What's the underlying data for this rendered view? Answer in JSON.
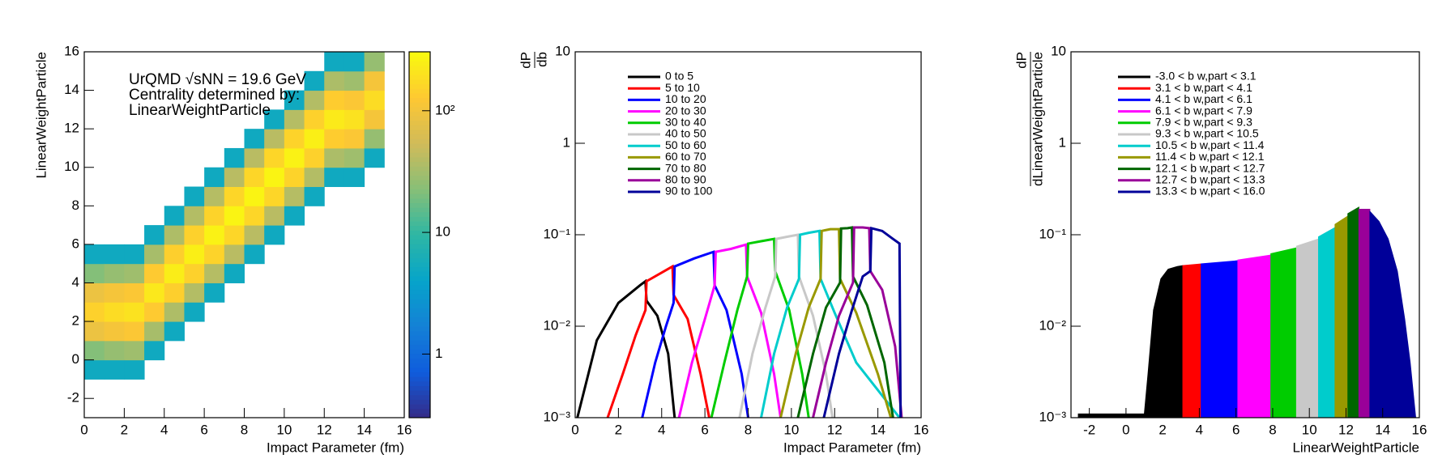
{
  "chart_data": [
    {
      "type": "heatmap",
      "xlabel": "Impact Parameter (fm)",
      "ylabel": "LinearWeightParticle",
      "annotations": [
        "UrQMD √sNN = 19.6 GeV",
        "Centrality determined by:",
        "LinearWeightParticle"
      ],
      "xlim": [
        0,
        16
      ],
      "ylim": [
        -3,
        16
      ],
      "xticks": [
        0,
        2,
        4,
        6,
        8,
        10,
        12,
        14,
        16
      ],
      "yticks": [
        -2,
        0,
        2,
        4,
        6,
        8,
        10,
        12,
        14,
        16
      ],
      "x_bins": [
        0,
        1,
        2,
        3,
        4,
        5,
        6,
        7,
        8,
        9,
        10,
        11,
        12,
        13,
        14,
        15
      ],
      "y_bins": [
        -1,
        0,
        1,
        2,
        3,
        4,
        5,
        6,
        7,
        8,
        9,
        10,
        11,
        12,
        13,
        14,
        15,
        16
      ],
      "values": [
        [
          5,
          22,
          90,
          150,
          90,
          22,
          5,
          0,
          0,
          0,
          0,
          0,
          0,
          0,
          0,
          0,
          0
        ],
        [
          5,
          27,
          108,
          180,
          108,
          27,
          5,
          0,
          0,
          0,
          0,
          0,
          0,
          0,
          0,
          0,
          0
        ],
        [
          5,
          30,
          120,
          200,
          120,
          30,
          5,
          0,
          0,
          0,
          0,
          0,
          0,
          0,
          0,
          0,
          0
        ],
        [
          0,
          5,
          33,
          132,
          220,
          132,
          33,
          5,
          0,
          0,
          0,
          0,
          0,
          0,
          0,
          0,
          0
        ],
        [
          0,
          0,
          5,
          36,
          144,
          240,
          144,
          36,
          5,
          0,
          0,
          0,
          0,
          0,
          0,
          0,
          0
        ],
        [
          0,
          0,
          0,
          5,
          38,
          150,
          250,
          150,
          38,
          5,
          0,
          0,
          0,
          0,
          0,
          0,
          0
        ],
        [
          0,
          0,
          0,
          0,
          5,
          39,
          156,
          260,
          156,
          39,
          5,
          0,
          0,
          0,
          0,
          0,
          0
        ],
        [
          0,
          0,
          0,
          0,
          0,
          5,
          41,
          162,
          270,
          162,
          41,
          5,
          0,
          0,
          0,
          0,
          0
        ],
        [
          0,
          0,
          0,
          0,
          0,
          0,
          5,
          41,
          162,
          270,
          162,
          41,
          5,
          0,
          0,
          0,
          0
        ],
        [
          0,
          0,
          0,
          0,
          0,
          0,
          0,
          5,
          41,
          162,
          270,
          162,
          41,
          5,
          0,
          0,
          0
        ],
        [
          0,
          0,
          0,
          0,
          0,
          0,
          0,
          0,
          5,
          39,
          156,
          260,
          156,
          39,
          5,
          0,
          0
        ],
        [
          0,
          0,
          0,
          0,
          0,
          0,
          0,
          0,
          0,
          5,
          38,
          150,
          250,
          150,
          38,
          5,
          0
        ],
        [
          0,
          0,
          0,
          0,
          0,
          0,
          0,
          0,
          0,
          0,
          5,
          35,
          138,
          230,
          138,
          35,
          5
        ],
        [
          0,
          0,
          0,
          0,
          0,
          0,
          0,
          0,
          0,
          0,
          5,
          30,
          120,
          200,
          120,
          30,
          5
        ],
        [
          0,
          0,
          0,
          0,
          0,
          0,
          0,
          0,
          0,
          0,
          0,
          5,
          27,
          108,
          180,
          108,
          27
        ]
      ],
      "zlim": [
        0.3,
        305
      ],
      "log_z": true,
      "zticks": [
        1,
        10,
        {
          "value": 100,
          "label": "10²"
        }
      ],
      "palette": [
        "#352a87",
        "#0f5cdd",
        "#1481d6",
        "#06a4ca",
        "#2eb7a4",
        "#87bf77",
        "#d1bb59",
        "#fec832",
        "#f9fb0e"
      ]
    },
    {
      "type": "line",
      "xlabel": "Impact Parameter (fm)",
      "ylabel_num": "dP",
      "ylabel_den": "db",
      "xlim": [
        0,
        16
      ],
      "ylim": [
        0.001,
        10
      ],
      "log_y": true,
      "xticks": [
        0,
        2,
        4,
        6,
        8,
        10,
        12,
        14,
        16
      ],
      "yticks": [
        {
          "value": 0.001,
          "label": "10⁻³"
        },
        {
          "value": 0.01,
          "label": "10⁻²"
        },
        {
          "value": 0.1,
          "label": "10⁻¹"
        },
        1,
        10
      ],
      "legend": "top-left",
      "series": [
        {
          "name": "0 to 5",
          "color": "#000000",
          "x": [
            0.1,
            1,
            2,
            3,
            3.25,
            3.3,
            3.8,
            4.3,
            4.6
          ],
          "values": [
            0.001,
            0.007,
            0.018,
            0.028,
            0.031,
            0.019,
            0.013,
            0.005,
            0.001
          ]
        },
        {
          "name": "5 to 10",
          "color": "#ff0000",
          "x": [
            1.5,
            2.2,
            2.8,
            3.25,
            3.3,
            4.5,
            4.55,
            5.2,
            5.8,
            6.2
          ],
          "values": [
            0.001,
            0.003,
            0.008,
            0.015,
            0.031,
            0.045,
            0.022,
            0.012,
            0.003,
            0.001
          ]
        },
        {
          "name": "10 to 20",
          "color": "#0000ff",
          "x": [
            3.1,
            3.7,
            4.2,
            4.55,
            4.6,
            5.5,
            6.4,
            6.45,
            7,
            7.7,
            8
          ],
          "values": [
            0.001,
            0.004,
            0.01,
            0.018,
            0.045,
            0.055,
            0.065,
            0.028,
            0.015,
            0.003,
            0.001
          ]
        },
        {
          "name": "20 to 30",
          "color": "#ff00ff",
          "x": [
            4.8,
            5.4,
            6,
            6.45,
            6.5,
            7.2,
            7.9,
            7.95,
            8.6,
            9.2,
            9.5
          ],
          "values": [
            0.001,
            0.004,
            0.012,
            0.028,
            0.065,
            0.07,
            0.078,
            0.035,
            0.014,
            0.003,
            0.001
          ]
        },
        {
          "name": "30 to 40",
          "color": "#00cc00",
          "x": [
            6.3,
            6.9,
            7.5,
            7.95,
            8,
            8.6,
            9.2,
            9.25,
            9.9,
            10.5,
            10.8
          ],
          "values": [
            0.001,
            0.004,
            0.015,
            0.035,
            0.08,
            0.085,
            0.09,
            0.04,
            0.015,
            0.003,
            0.001
          ]
        },
        {
          "name": "40 to 50",
          "color": "#c8c8c8",
          "x": [
            7.6,
            8.2,
            8.8,
            9.25,
            9.3,
            9.8,
            10.3,
            10.35,
            11,
            11.6,
            11.9
          ],
          "values": [
            0.001,
            0.005,
            0.016,
            0.035,
            0.09,
            0.095,
            0.1,
            0.035,
            0.013,
            0.003,
            0.001
          ]
        },
        {
          "name": "50 to 60",
          "color": "#00cccc",
          "x": [
            8.6,
            9.2,
            9.8,
            10.35,
            10.4,
            10.8,
            11.3,
            11.35,
            12,
            13,
            14,
            15
          ],
          "values": [
            0.001,
            0.005,
            0.016,
            0.033,
            0.1,
            0.105,
            0.11,
            0.033,
            0.014,
            0.004,
            0.002,
            0.001
          ]
        },
        {
          "name": "60 to 70",
          "color": "#999900",
          "x": [
            9.5,
            10.2,
            10.8,
            11.35,
            11.4,
            11.8,
            12.2,
            12.25,
            13,
            14,
            14.6
          ],
          "values": [
            0.001,
            0.005,
            0.016,
            0.033,
            0.11,
            0.115,
            0.115,
            0.033,
            0.014,
            0.003,
            0.001
          ]
        },
        {
          "name": "70 to 80",
          "color": "#006600",
          "x": [
            10.3,
            11,
            11.6,
            12.25,
            12.3,
            12.6,
            12.8,
            12.85,
            13.5,
            14.3,
            14.7
          ],
          "values": [
            0.001,
            0.005,
            0.016,
            0.03,
            0.117,
            0.118,
            0.12,
            0.035,
            0.017,
            0.004,
            0.001
          ]
        },
        {
          "name": "80 to 90",
          "color": "#990099",
          "x": [
            11,
            11.6,
            12.2,
            12.85,
            12.9,
            13.3,
            13.6,
            13.65,
            14.2,
            14.8,
            15.1
          ],
          "values": [
            0.001,
            0.004,
            0.013,
            0.03,
            0.12,
            0.12,
            0.118,
            0.04,
            0.025,
            0.006,
            0.001
          ]
        },
        {
          "name": "90 to 100",
          "color": "#000099",
          "x": [
            11.5,
            12.2,
            12.8,
            13.3,
            13.65,
            13.7,
            14.2,
            14.7,
            15,
            15.05
          ],
          "values": [
            0.001,
            0.005,
            0.015,
            0.035,
            0.04,
            0.118,
            0.11,
            0.09,
            0.08,
            0.001
          ]
        }
      ]
    },
    {
      "type": "area",
      "xlabel": "LinearWeightParticle",
      "ylabel_num": "dP",
      "ylabel_den": "dLinearWeightParticle",
      "xlim": [
        -3,
        16
      ],
      "ylim": [
        0.001,
        10
      ],
      "log_y": true,
      "xticks": [
        -2,
        0,
        2,
        4,
        6,
        8,
        10,
        12,
        14,
        16
      ],
      "yticks": [
        {
          "value": 0.001,
          "label": "10⁻³"
        },
        {
          "value": 0.01,
          "label": "10⁻²"
        },
        {
          "value": 0.1,
          "label": "10⁻¹"
        },
        1,
        10
      ],
      "legend": "top-left",
      "series": [
        {
          "name": "-3.0 < b w,part < 3.1",
          "color": "#000000",
          "x": [
            -2.6,
            1.0,
            1.2,
            1.5,
            1.9,
            2.3,
            2.8,
            3.1
          ],
          "values": [
            0.0011,
            0.0011,
            0.003,
            0.015,
            0.033,
            0.042,
            0.045,
            0.046
          ]
        },
        {
          "name": "3.1 < b w,part < 4.1",
          "color": "#ff0000",
          "x": [
            3.1,
            4.1
          ],
          "values": [
            0.046,
            0.048
          ]
        },
        {
          "name": "4.1 < b w,part < 6.1",
          "color": "#0000ff",
          "x": [
            4.1,
            6.1
          ],
          "values": [
            0.048,
            0.052
          ]
        },
        {
          "name": "6.1 < b w,part < 7.9",
          "color": "#ff00ff",
          "x": [
            6.1,
            7.9
          ],
          "values": [
            0.053,
            0.06
          ]
        },
        {
          "name": "7.9 < b w,part < 9.3",
          "color": "#00cc00",
          "x": [
            7.9,
            9.3
          ],
          "values": [
            0.062,
            0.072
          ]
        },
        {
          "name": "9.3 < b w,part < 10.5",
          "color": "#c8c8c8",
          "x": [
            9.3,
            10.5
          ],
          "values": [
            0.075,
            0.09
          ]
        },
        {
          "name": "10.5 < b w,part < 11.4",
          "color": "#00cccc",
          "x": [
            10.5,
            11.4
          ],
          "values": [
            0.095,
            0.12
          ]
        },
        {
          "name": "11.4 < b w,part < 12.1",
          "color": "#999900",
          "x": [
            11.4,
            12.1
          ],
          "values": [
            0.13,
            0.16
          ]
        },
        {
          "name": "12.1 < b w,part < 12.7",
          "color": "#006600",
          "x": [
            12.1,
            12.7
          ],
          "values": [
            0.17,
            0.2
          ]
        },
        {
          "name": "12.7 < b w,part < 13.3",
          "color": "#990099",
          "x": [
            12.7,
            13.3
          ],
          "values": [
            0.19,
            0.19
          ]
        },
        {
          "name": "13.3 < b w,part < 16.0",
          "color": "#000099",
          "x": [
            13.3,
            13.8,
            14.3,
            14.8,
            15.2,
            15.5,
            15.8
          ],
          "values": [
            0.18,
            0.14,
            0.09,
            0.04,
            0.012,
            0.004,
            0.001
          ]
        }
      ]
    }
  ]
}
